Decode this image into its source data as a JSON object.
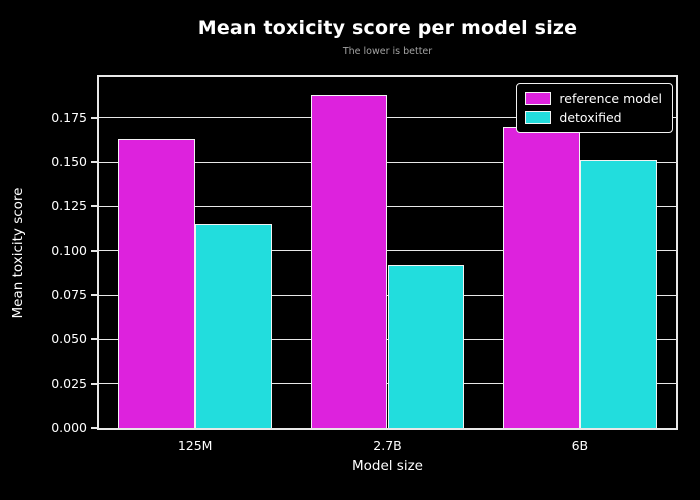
{
  "chart_data": {
    "type": "bar",
    "title": "Mean toxicity score per model size",
    "subtitle": "The lower is better",
    "xlabel": "Model size",
    "ylabel": "Mean toxicity score",
    "categories": [
      "125M",
      "2.7B",
      "6B"
    ],
    "series": [
      {
        "name": "reference model",
        "color": "#dd22dd",
        "values": [
          0.163,
          0.188,
          0.17
        ]
      },
      {
        "name": "detoxified",
        "color": "#22dddd",
        "values": [
          0.115,
          0.092,
          0.151
        ]
      }
    ],
    "ylim": [
      0,
      0.198
    ],
    "yticks": [
      0.0,
      0.025,
      0.05,
      0.075,
      0.1,
      0.125,
      0.15,
      0.175
    ],
    "ytick_labels": [
      "0.000",
      "0.025",
      "0.050",
      "0.075",
      "0.100",
      "0.125",
      "0.150",
      "0.175"
    ],
    "grid": "horizontal",
    "legend_position": "upper right",
    "background_color": "#000000",
    "text_color": "#ffffff"
  }
}
